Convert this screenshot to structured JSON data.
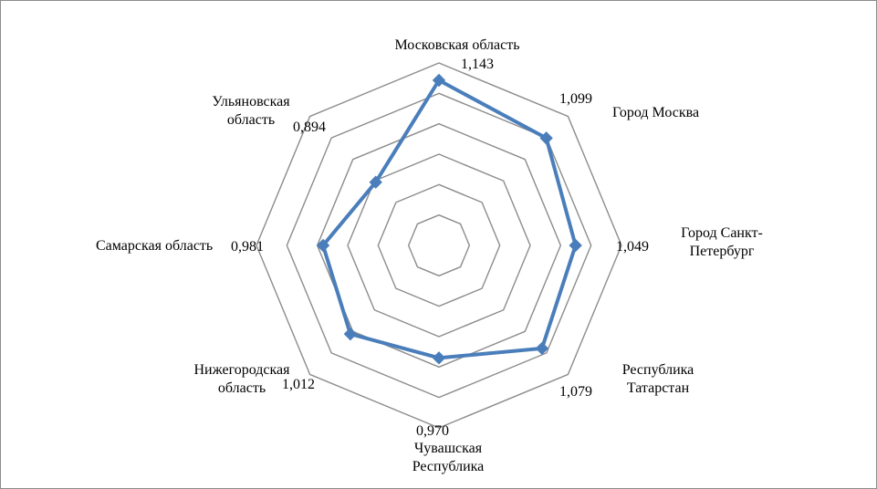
{
  "chart_data": {
    "type": "radar",
    "categories": [
      "Московская область",
      "Город Москва",
      "Город Санкт-Петербург",
      "Республика Татарстан",
      "Чувашская Республика",
      "Нижегородская область",
      "Самарская область",
      "Ульяновская область"
    ],
    "category_lines": [
      [
        "Московская область"
      ],
      [
        "Город Москва"
      ],
      [
        "Город Санкт-",
        "Петербург"
      ],
      [
        "Республика",
        "Татарстан"
      ],
      [
        "Чувашская",
        "Республика"
      ],
      [
        "Нижегородская",
        "область"
      ],
      [
        "Самарская область"
      ],
      [
        "Ульяновская",
        "область"
      ]
    ],
    "values": [
      1.143,
      1.099,
      1.049,
      1.079,
      0.97,
      1.012,
      0.981,
      0.894
    ],
    "value_labels": [
      "1,143",
      "1,099",
      "1,049",
      "1,079",
      "0,970",
      "1,012",
      "0,981",
      "0,894"
    ],
    "rlim": [
      0.6,
      1.2
    ],
    "grid_rings": 6,
    "legend": "none",
    "colors": {
      "series": "#4a7ebb",
      "grid": "#8c8c8c"
    }
  }
}
